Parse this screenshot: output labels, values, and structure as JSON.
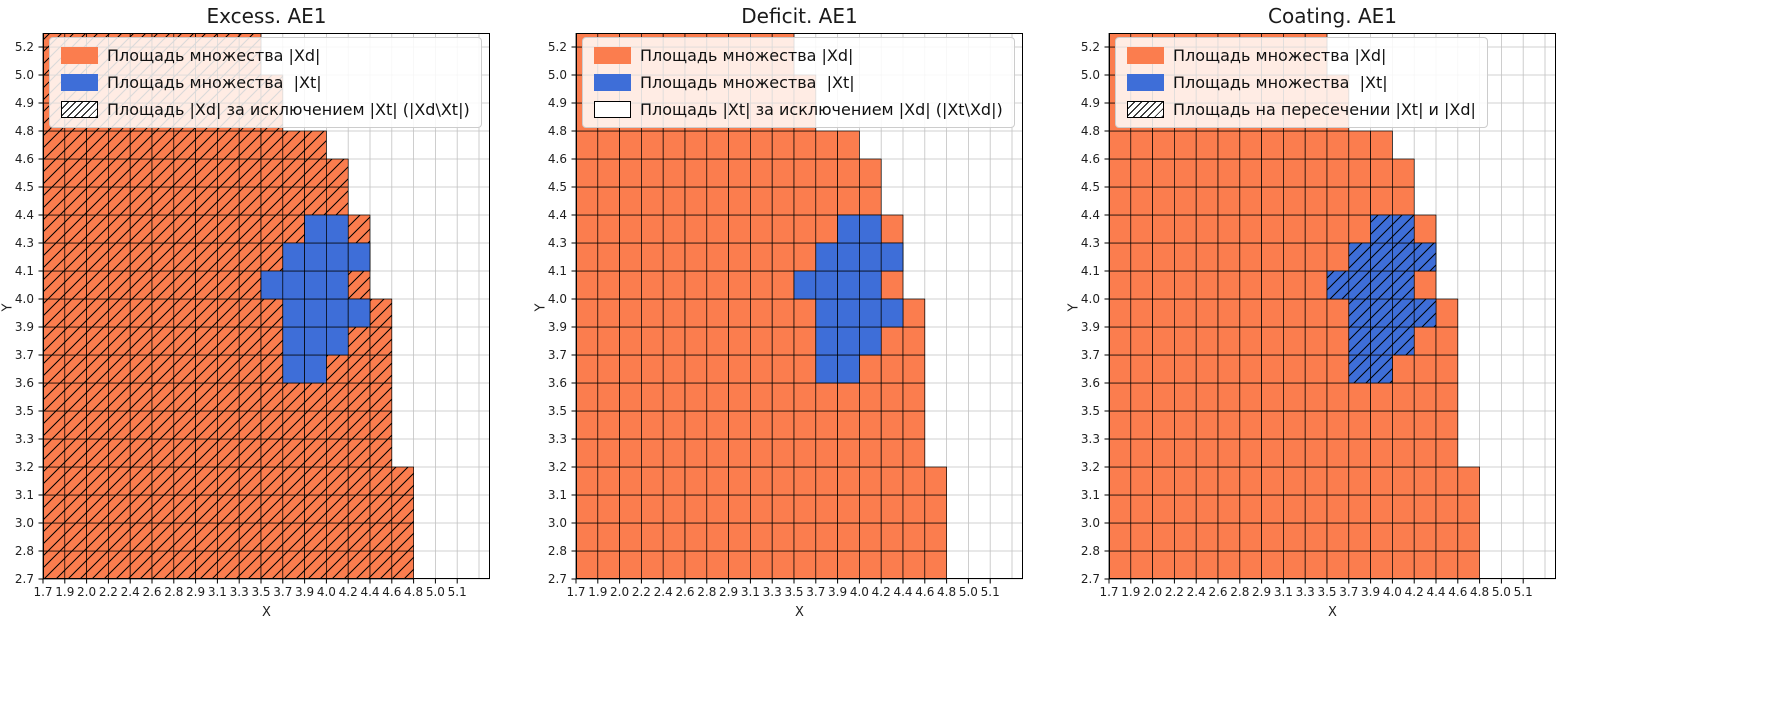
{
  "colors": {
    "xd_fill": "#fb7d4e",
    "xt_fill": "#3e6ed8",
    "grid_line": "#c2c2c2",
    "cell_edge": "#000000",
    "hatch_line": "#000000",
    "spine": "#000000",
    "legend_border": "#cccccc"
  },
  "chart_data": {
    "type": "heatmap",
    "grid": true,
    "legend_position": "upper left",
    "shared": {
      "xlabel": "X",
      "ylabel": "Y",
      "x_ticks": [
        "1.7",
        "1.9",
        "2.0",
        "2.2",
        "2.4",
        "2.6",
        "2.8",
        "2.9",
        "3.1",
        "3.3",
        "3.5",
        "3.7",
        "3.9",
        "4.0",
        "4.2",
        "4.4",
        "4.6",
        "4.8",
        "5.0",
        "5.1"
      ],
      "y_ticks": [
        "2.7",
        "2.8",
        "3.0",
        "3.1",
        "3.2",
        "3.3",
        "3.5",
        "3.6",
        "3.7",
        "3.9",
        "4.0",
        "4.1",
        "4.3",
        "4.4",
        "4.5",
        "4.6",
        "4.8",
        "4.9",
        "5.0",
        "5.2"
      ],
      "grid_columns": 20,
      "grid_rows": 20,
      "xd_top_row_per_col": [
        19,
        19,
        19,
        19,
        19,
        19,
        19,
        19,
        19,
        19,
        17,
        15,
        15,
        14,
        12,
        9,
        3,
        -1,
        -1,
        -1
      ],
      "xt_cells": [
        [
          7,
          11
        ],
        [
          7,
          12
        ],
        [
          8,
          11
        ],
        [
          8,
          12
        ],
        [
          8,
          13
        ],
        [
          9,
          11
        ],
        [
          9,
          12
        ],
        [
          9,
          13
        ],
        [
          9,
          14
        ],
        [
          10,
          10
        ],
        [
          10,
          11
        ],
        [
          10,
          12
        ],
        [
          10,
          13
        ],
        [
          11,
          11
        ],
        [
          11,
          12
        ],
        [
          11,
          13
        ],
        [
          11,
          14
        ],
        [
          12,
          12
        ],
        [
          12,
          13
        ]
      ]
    },
    "plots": [
      {
        "title": "Excess. AE1",
        "hatch_region": "xd_minus_xt",
        "legend": [
          {
            "swatch": "xd",
            "label": "Площадь множества |Xd|"
          },
          {
            "swatch": "xt",
            "label": "Площадь множества  |Xt|"
          },
          {
            "swatch": "hatch",
            "label": "Площадь |Xd| за исключением |Xt| (|Xd\\Xt|)"
          }
        ]
      },
      {
        "title": "Deficit. AE1",
        "hatch_region": "none",
        "legend": [
          {
            "swatch": "xd",
            "label": "Площадь множества |Xd|"
          },
          {
            "swatch": "xt",
            "label": "Площадь множества  |Xt|"
          },
          {
            "swatch": "plain",
            "label": "Площадь |Xt| за исключением |Xd| (|Xt\\Xd|)"
          }
        ]
      },
      {
        "title": "Coating. AE1",
        "hatch_region": "xt_intersect_xd",
        "legend": [
          {
            "swatch": "xd",
            "label": "Площадь множества |Xd|"
          },
          {
            "swatch": "xt",
            "label": "Площадь множества  |Xt|"
          },
          {
            "swatch": "hatch",
            "label": "Площадь на пересечении |Xt| и |Xd|"
          }
        ]
      }
    ]
  }
}
